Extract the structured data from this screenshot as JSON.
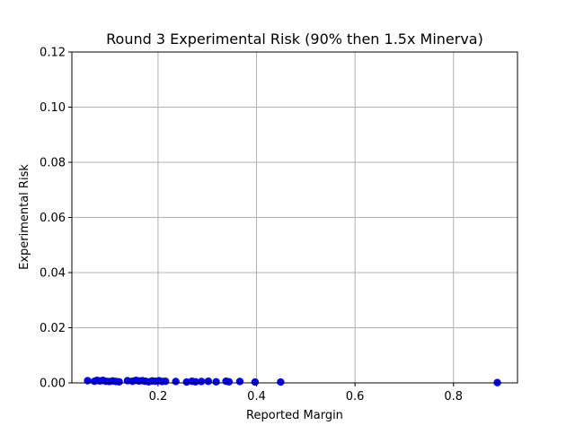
{
  "chart_data": {
    "type": "scatter",
    "title": "Round 3 Experimental Risk (90% then 1.5x Minerva)",
    "xlabel": "Reported Margin",
    "ylabel": "Experimental Risk",
    "xlim": [
      0.025,
      0.93
    ],
    "ylim": [
      0.0,
      0.12
    ],
    "x_ticks": [
      {
        "value": 0.2,
        "label": "0.2"
      },
      {
        "value": 0.4,
        "label": "0.4"
      },
      {
        "value": 0.6,
        "label": "0.6"
      },
      {
        "value": 0.8,
        "label": "0.8"
      }
    ],
    "y_ticks": [
      {
        "value": 0.0,
        "label": "0.00"
      },
      {
        "value": 0.02,
        "label": "0.02"
      },
      {
        "value": 0.04,
        "label": "0.04"
      },
      {
        "value": 0.06,
        "label": "0.06"
      },
      {
        "value": 0.08,
        "label": "0.08"
      },
      {
        "value": 0.1,
        "label": "0.10"
      },
      {
        "value": 0.12,
        "label": "0.12"
      }
    ],
    "grid": true,
    "marker_color": "#0000ff",
    "points": [
      {
        "x": 0.057,
        "y": 0.0008
      },
      {
        "x": 0.071,
        "y": 0.0006
      },
      {
        "x": 0.076,
        "y": 0.0009
      },
      {
        "x": 0.082,
        "y": 0.0007
      },
      {
        "x": 0.088,
        "y": 0.0009
      },
      {
        "x": 0.094,
        "y": 0.0006
      },
      {
        "x": 0.101,
        "y": 0.0005
      },
      {
        "x": 0.108,
        "y": 0.0007
      },
      {
        "x": 0.115,
        "y": 0.0005
      },
      {
        "x": 0.121,
        "y": 0.0004
      },
      {
        "x": 0.138,
        "y": 0.0008
      },
      {
        "x": 0.148,
        "y": 0.0006
      },
      {
        "x": 0.155,
        "y": 0.0009
      },
      {
        "x": 0.161,
        "y": 0.0007
      },
      {
        "x": 0.168,
        "y": 0.0008
      },
      {
        "x": 0.174,
        "y": 0.0006
      },
      {
        "x": 0.181,
        "y": 0.0004
      },
      {
        "x": 0.188,
        "y": 0.0007
      },
      {
        "x": 0.195,
        "y": 0.0006
      },
      {
        "x": 0.202,
        "y": 0.0008
      },
      {
        "x": 0.208,
        "y": 0.0005
      },
      {
        "x": 0.215,
        "y": 0.0006
      },
      {
        "x": 0.236,
        "y": 0.0005
      },
      {
        "x": 0.258,
        "y": 0.0003
      },
      {
        "x": 0.269,
        "y": 0.0006
      },
      {
        "x": 0.276,
        "y": 0.0004
      },
      {
        "x": 0.288,
        "y": 0.0005
      },
      {
        "x": 0.302,
        "y": 0.0006
      },
      {
        "x": 0.318,
        "y": 0.0004
      },
      {
        "x": 0.338,
        "y": 0.0006
      },
      {
        "x": 0.344,
        "y": 0.0004
      },
      {
        "x": 0.366,
        "y": 0.0005
      },
      {
        "x": 0.397,
        "y": 0.0003
      },
      {
        "x": 0.449,
        "y": 0.0003
      },
      {
        "x": 0.889,
        "y": 0.0001
      }
    ]
  }
}
